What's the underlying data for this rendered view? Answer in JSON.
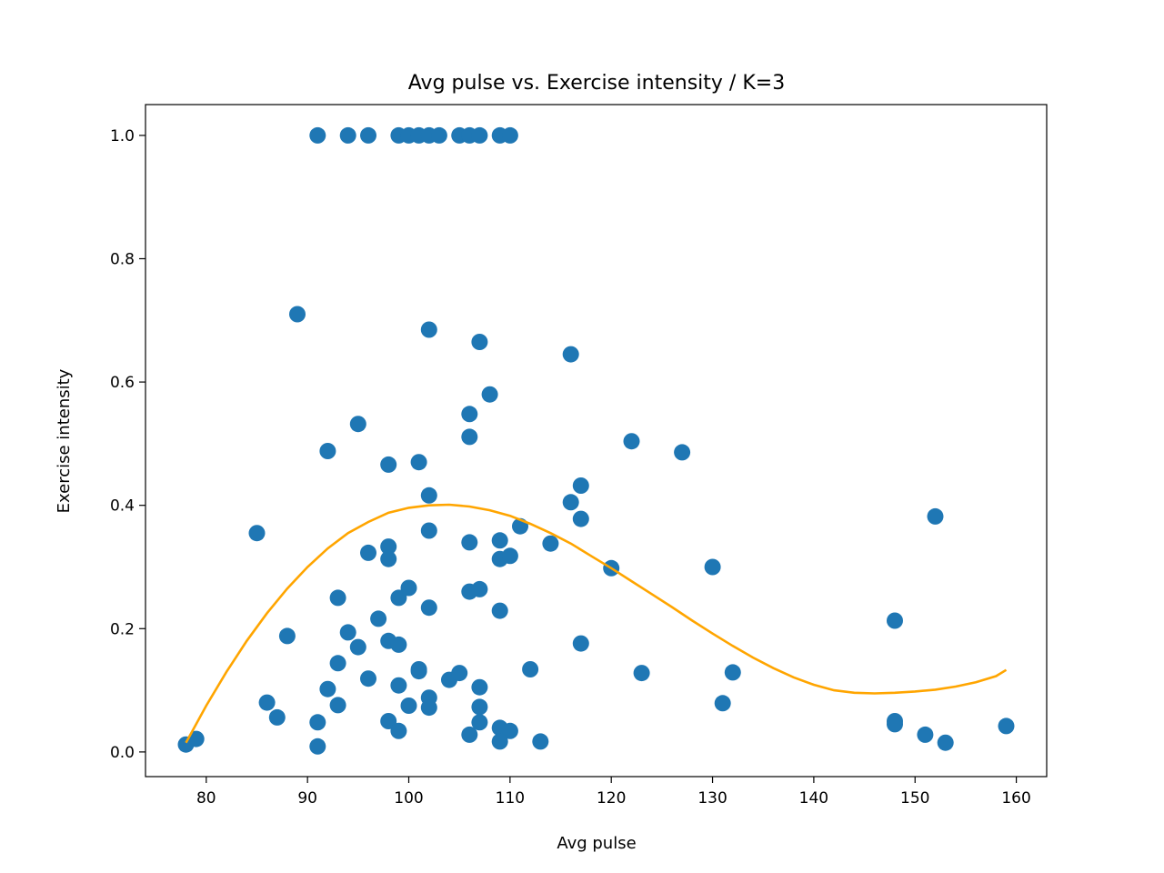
{
  "chart_data": {
    "type": "scatter",
    "title": "Avg pulse vs. Exercise intensity / K=3",
    "xlabel": "Avg pulse",
    "ylabel": "Exercise intensity",
    "xlim": [
      74.0,
      163.0
    ],
    "ylim": [
      -0.04,
      1.05
    ],
    "xticks": [
      80,
      90,
      100,
      110,
      120,
      130,
      140,
      150,
      160
    ],
    "yticks": [
      0.0,
      0.2,
      0.4,
      0.6,
      0.8,
      1.0
    ],
    "ytick_labels": [
      "0.0",
      "0.2",
      "0.4",
      "0.6",
      "0.8",
      "1.0"
    ],
    "grid": false,
    "series": [
      {
        "type": "scatter",
        "color": "#1f77b4",
        "points": [
          [
            91,
            1.0
          ],
          [
            94,
            1.0
          ],
          [
            96,
            1.0
          ],
          [
            99,
            1.0
          ],
          [
            100,
            1.0
          ],
          [
            101,
            1.0
          ],
          [
            102,
            1.0
          ],
          [
            103,
            1.0
          ],
          [
            105,
            1.0
          ],
          [
            106,
            1.0
          ],
          [
            107,
            1.0
          ],
          [
            109,
            1.0
          ],
          [
            110,
            1.0
          ],
          [
            89,
            0.71
          ],
          [
            102,
            0.685
          ],
          [
            107,
            0.665
          ],
          [
            116,
            0.645
          ],
          [
            108,
            0.58
          ],
          [
            95,
            0.532
          ],
          [
            106,
            0.548
          ],
          [
            106,
            0.511
          ],
          [
            122,
            0.504
          ],
          [
            127,
            0.486
          ],
          [
            92,
            0.488
          ],
          [
            98,
            0.466
          ],
          [
            101,
            0.47
          ],
          [
            117,
            0.432
          ],
          [
            102,
            0.416
          ],
          [
            116,
            0.405
          ],
          [
            117,
            0.378
          ],
          [
            152,
            0.382
          ],
          [
            85,
            0.355
          ],
          [
            102,
            0.359
          ],
          [
            111,
            0.366
          ],
          [
            98,
            0.333
          ],
          [
            109,
            0.343
          ],
          [
            114,
            0.338
          ],
          [
            106,
            0.34
          ],
          [
            96,
            0.323
          ],
          [
            98,
            0.313
          ],
          [
            109,
            0.313
          ],
          [
            110,
            0.318
          ],
          [
            120,
            0.298
          ],
          [
            130,
            0.3
          ],
          [
            100,
            0.266
          ],
          [
            106,
            0.26
          ],
          [
            107,
            0.264
          ],
          [
            93,
            0.25
          ],
          [
            99,
            0.25
          ],
          [
            102,
            0.234
          ],
          [
            109,
            0.229
          ],
          [
            97,
            0.216
          ],
          [
            148,
            0.213
          ],
          [
            94,
            0.194
          ],
          [
            88,
            0.188
          ],
          [
            98,
            0.18
          ],
          [
            99,
            0.174
          ],
          [
            117,
            0.176
          ],
          [
            95,
            0.17
          ],
          [
            93,
            0.144
          ],
          [
            101,
            0.131
          ],
          [
            101,
            0.134
          ],
          [
            112,
            0.134
          ],
          [
            123,
            0.128
          ],
          [
            132,
            0.129
          ],
          [
            96,
            0.119
          ],
          [
            104,
            0.117
          ],
          [
            105,
            0.128
          ],
          [
            99,
            0.108
          ],
          [
            107,
            0.105
          ],
          [
            92,
            0.102
          ],
          [
            102,
            0.088
          ],
          [
            86,
            0.08
          ],
          [
            93,
            0.076
          ],
          [
            100,
            0.075
          ],
          [
            102,
            0.072
          ],
          [
            107,
            0.073
          ],
          [
            131,
            0.079
          ],
          [
            87,
            0.056
          ],
          [
            91,
            0.048
          ],
          [
            98,
            0.05
          ],
          [
            107,
            0.048
          ],
          [
            148,
            0.05
          ],
          [
            148,
            0.045
          ],
          [
            99,
            0.034
          ],
          [
            109,
            0.039
          ],
          [
            110,
            0.034
          ],
          [
            159,
            0.042
          ],
          [
            106,
            0.028
          ],
          [
            151,
            0.028
          ],
          [
            78,
            0.012
          ],
          [
            79,
            0.021
          ],
          [
            91,
            0.009
          ],
          [
            109,
            0.017
          ],
          [
            113,
            0.017
          ],
          [
            153,
            0.015
          ]
        ]
      },
      {
        "type": "line",
        "color": "#ffa500",
        "points": [
          [
            78,
            0.015
          ],
          [
            80,
            0.075
          ],
          [
            82,
            0.13
          ],
          [
            84,
            0.18
          ],
          [
            86,
            0.225
          ],
          [
            88,
            0.265
          ],
          [
            90,
            0.3
          ],
          [
            92,
            0.33
          ],
          [
            94,
            0.355
          ],
          [
            96,
            0.373
          ],
          [
            98,
            0.388
          ],
          [
            100,
            0.396
          ],
          [
            102,
            0.4
          ],
          [
            104,
            0.401
          ],
          [
            106,
            0.398
          ],
          [
            108,
            0.392
          ],
          [
            110,
            0.383
          ],
          [
            112,
            0.37
          ],
          [
            114,
            0.355
          ],
          [
            116,
            0.338
          ],
          [
            118,
            0.318
          ],
          [
            120,
            0.298
          ],
          [
            122,
            0.277
          ],
          [
            124,
            0.256
          ],
          [
            126,
            0.235
          ],
          [
            128,
            0.213
          ],
          [
            130,
            0.192
          ],
          [
            132,
            0.172
          ],
          [
            134,
            0.153
          ],
          [
            136,
            0.136
          ],
          [
            138,
            0.121
          ],
          [
            140,
            0.109
          ],
          [
            142,
            0.1
          ],
          [
            144,
            0.096
          ],
          [
            146,
            0.095
          ],
          [
            148,
            0.096
          ],
          [
            150,
            0.098
          ],
          [
            152,
            0.101
          ],
          [
            154,
            0.106
          ],
          [
            156,
            0.113
          ],
          [
            158,
            0.123
          ],
          [
            159,
            0.133
          ]
        ]
      }
    ]
  }
}
